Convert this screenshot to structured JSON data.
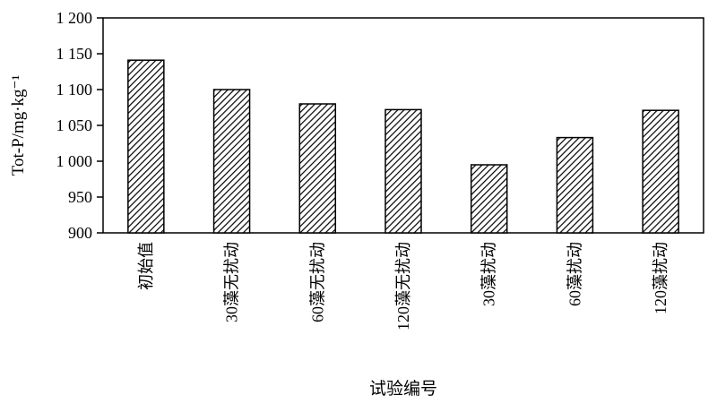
{
  "chart_data": {
    "type": "bar",
    "categories": [
      "初始值",
      "30藻无扰动",
      "60藻无扰动",
      "120藻无扰动",
      "30藻扰动",
      "60藻扰动",
      "120藻扰动"
    ],
    "values": [
      1141,
      1100,
      1080,
      1072,
      995,
      1033,
      1071
    ],
    "title": "",
    "xlabel": "试验编号",
    "ylabel": "Tot-P/mg·kg⁻¹",
    "ylim": [
      900,
      1200
    ],
    "yticks": [
      900,
      950,
      1000,
      1050,
      1100,
      1150,
      1200
    ],
    "ytick_labels": [
      "900",
      "950",
      "1 000",
      "1 050",
      "1 100",
      "1 150",
      "1 200"
    ],
    "grid": false,
    "legend": "none",
    "bar_fill": "diagonal-hatch",
    "colors": {
      "stroke": "#000000",
      "background": "#ffffff"
    }
  }
}
